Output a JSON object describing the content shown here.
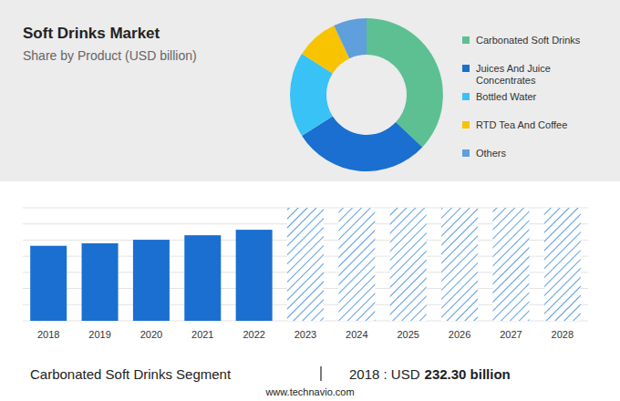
{
  "chart_data": [
    {
      "type": "donut",
      "title": "Soft Drinks Market",
      "subtitle": "Share by Product (USD billion)",
      "categories": [
        "Carbonated Soft Drinks",
        "Juices And Juice Concentrates",
        "Bottled Water",
        "RTD Tea And Coffee",
        "Others"
      ],
      "values": [
        37,
        29,
        18,
        9,
        7
      ],
      "colors": [
        "#5cc093",
        "#1a6fd0",
        "#38c2f5",
        "#f8c300",
        "#5e9fdc"
      ],
      "legend": "right"
    },
    {
      "type": "bar",
      "categories": [
        "2018",
        "2019",
        "2020",
        "2021",
        "2022",
        "2023",
        "2024",
        "2025",
        "2026",
        "2027",
        "2028"
      ],
      "values": [
        232.3,
        240,
        251,
        265,
        282,
        null,
        null,
        null,
        null,
        null,
        null
      ],
      "color": "#1a6fd0",
      "ylim": [
        0,
        350
      ],
      "yticks": [
        0,
        50,
        100,
        150,
        200,
        250,
        300,
        350
      ],
      "grid": true,
      "tick_labels": "x"
    }
  ],
  "footer": {
    "segment": "Carbonated Soft Drinks Segment",
    "year_label": "2018 : USD",
    "amount": "232.30 billion"
  },
  "source": "www.technavio.com"
}
